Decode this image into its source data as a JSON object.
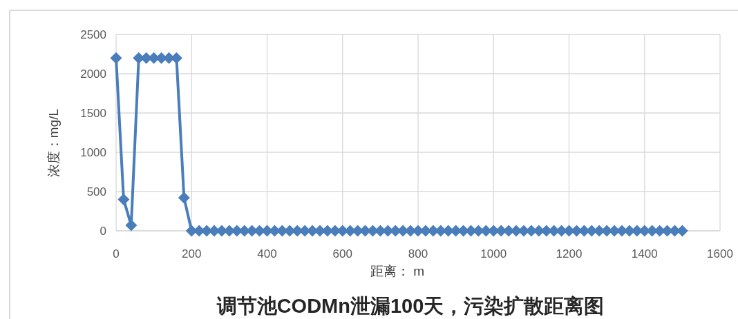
{
  "chart_data": {
    "type": "line",
    "title": "调节池CODMn泄漏100天，污染扩散距离图",
    "xlabel": "距离： m",
    "ylabel": "浓度：mg/L",
    "x": [
      0,
      20,
      40,
      60,
      80,
      100,
      120,
      140,
      160,
      180,
      200,
      220,
      240,
      260,
      280,
      300,
      320,
      340,
      360,
      380,
      400,
      420,
      440,
      460,
      480,
      500,
      520,
      540,
      560,
      580,
      600,
      620,
      640,
      660,
      680,
      700,
      720,
      740,
      760,
      780,
      800,
      820,
      840,
      860,
      880,
      900,
      920,
      940,
      960,
      980,
      1000,
      1020,
      1040,
      1060,
      1080,
      1100,
      1120,
      1140,
      1160,
      1180,
      1200,
      1220,
      1240,
      1260,
      1280,
      1300,
      1320,
      1340,
      1360,
      1380,
      1400,
      1420,
      1440,
      1460,
      1480,
      1500
    ],
    "series": [
      {
        "color": "#4a7ebb",
        "values": [
          2200,
          400,
          70,
          2200,
          2200,
          2200,
          2200,
          2200,
          2200,
          420,
          0,
          0,
          0,
          0,
          0,
          0,
          0,
          0,
          0,
          0,
          0,
          0,
          0,
          0,
          0,
          0,
          0,
          0,
          0,
          0,
          0,
          0,
          0,
          0,
          0,
          0,
          0,
          0,
          0,
          0,
          0,
          0,
          0,
          0,
          0,
          0,
          0,
          0,
          0,
          0,
          0,
          0,
          0,
          0,
          0,
          0,
          0,
          0,
          0,
          0,
          0,
          0,
          0,
          0,
          0,
          0,
          0,
          0,
          0,
          0,
          0,
          0,
          0,
          0,
          0,
          0
        ]
      }
    ],
    "xlim": [
      0,
      1600
    ],
    "ylim": [
      0,
      2500
    ],
    "xticks": [
      0,
      200,
      400,
      600,
      800,
      1000,
      1200,
      1400,
      1600
    ],
    "yticks": [
      0,
      500,
      1000,
      1500,
      2000,
      2500
    ],
    "grid": true,
    "marker": "diamond",
    "line_style": "solid"
  }
}
